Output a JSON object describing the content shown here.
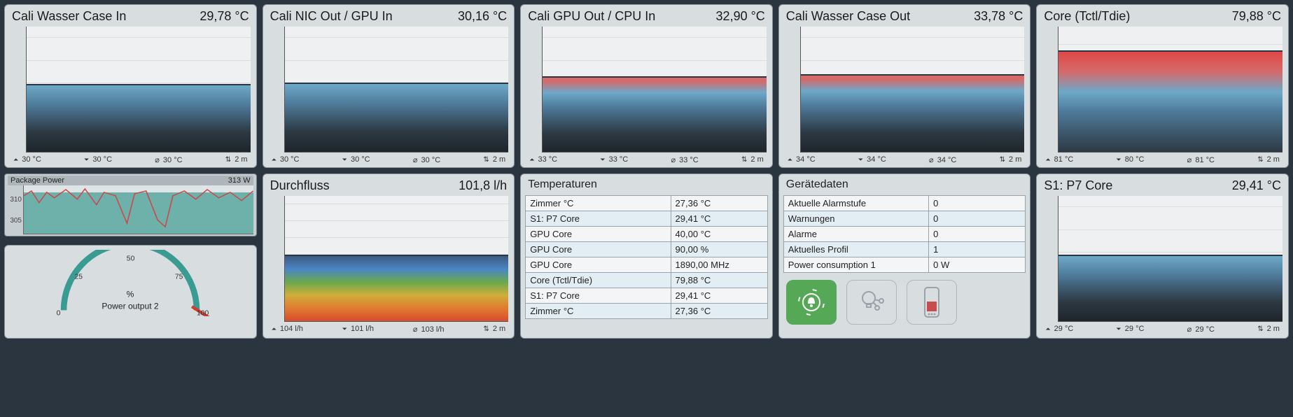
{
  "panels": {
    "p1": {
      "title": "Cali Wasser Case In",
      "value": "29,78 °C",
      "yticks": [
        "10",
        "20",
        "30",
        "40",
        "50"
      ],
      "fill_class": "fill-blue",
      "fill_pct": 53,
      "stats": {
        "max": "30 °C",
        "min": "30 °C",
        "avg": "30 °C",
        "range": "2 m"
      }
    },
    "p2": {
      "title": "Cali NIC Out / GPU In",
      "value": "30,16 °C",
      "yticks": [
        "10",
        "20",
        "30",
        "40",
        "50"
      ],
      "fill_class": "fill-blue",
      "fill_pct": 54,
      "stats": {
        "max": "30 °C",
        "min": "30 °C",
        "avg": "30 °C",
        "range": "2 m"
      }
    },
    "p3": {
      "title": "Cali GPU Out / CPU In",
      "value": "32,90 °C",
      "yticks": [
        "10",
        "20",
        "30",
        "40",
        "50"
      ],
      "fill_class": "fill-blue-red",
      "fill_pct": 59,
      "stats": {
        "max": "33 °C",
        "min": "33 °C",
        "avg": "33 °C",
        "range": "2 m"
      }
    },
    "p4": {
      "title": "Cali Wasser Case Out",
      "value": "33,78 °C",
      "yticks": [
        "10",
        "20",
        "30",
        "40",
        "50"
      ],
      "fill_class": "fill-blue-red",
      "fill_pct": 61,
      "stats": {
        "max": "34 °C",
        "min": "34 °C",
        "avg": "34 °C",
        "range": "2 m"
      }
    },
    "p5": {
      "title": "Core (Tctl/Tdie)",
      "value": "79,88 °C",
      "yticks": [
        "25",
        "50",
        "75"
      ],
      "fill_class": "fill-red",
      "fill_pct": 80,
      "stats": {
        "max": "81 °C",
        "min": "80 °C",
        "avg": "81 °C",
        "range": "2 m"
      }
    },
    "p6": {
      "title": "Durchfluss",
      "value": "101,8 l/h",
      "yticks": [
        "25",
        "50",
        "75",
        "100",
        "125",
        "150",
        "175"
      ],
      "fill_class": "fill-rainbow",
      "fill_pct": 52,
      "stats": {
        "max": "104 l/h",
        "min": "101 l/h",
        "avg": "103 l/h",
        "range": "2 m"
      }
    },
    "p10": {
      "title": "S1: P7 Core",
      "value": "29,41 °C",
      "yticks": [
        "10",
        "20",
        "30",
        "40",
        "50"
      ],
      "fill_class": "fill-blue",
      "fill_pct": 52,
      "stats": {
        "max": "29 °C",
        "min": "29 °C",
        "avg": "29 °C",
        "range": "2 m"
      }
    }
  },
  "power_small": {
    "title": "Package Power",
    "value": "313 W",
    "yticks": [
      "305",
      "310"
    ]
  },
  "gauge": {
    "label": "Power output 2",
    "unit": "%",
    "ticks": [
      "0",
      "25",
      "50",
      "75",
      "100"
    ]
  },
  "temp_table": {
    "header": "Temperaturen",
    "rows": [
      [
        "Zimmer °C",
        "27,36 °C"
      ],
      [
        "S1: P7 Core",
        "29,41 °C"
      ],
      [
        "GPU Core",
        "40,00 °C"
      ],
      [
        "GPU Core",
        "90,00 %"
      ],
      [
        "GPU Core",
        "1890,00 MHz"
      ],
      [
        "Core (Tctl/Tdie)",
        "79,88 °C"
      ],
      [
        "S1: P7 Core",
        "29,41 °C"
      ],
      [
        "Zimmer °C",
        "27,36 °C"
      ]
    ]
  },
  "device_table": {
    "header": "Gerätedaten",
    "rows": [
      [
        "Aktuelle Alarmstufe",
        "0"
      ],
      [
        "Warnungen",
        "0"
      ],
      [
        "Alarme",
        "0"
      ],
      [
        "Aktuelles Profil",
        "1"
      ],
      [
        "Power consumption 1",
        "0 W"
      ]
    ]
  }
}
